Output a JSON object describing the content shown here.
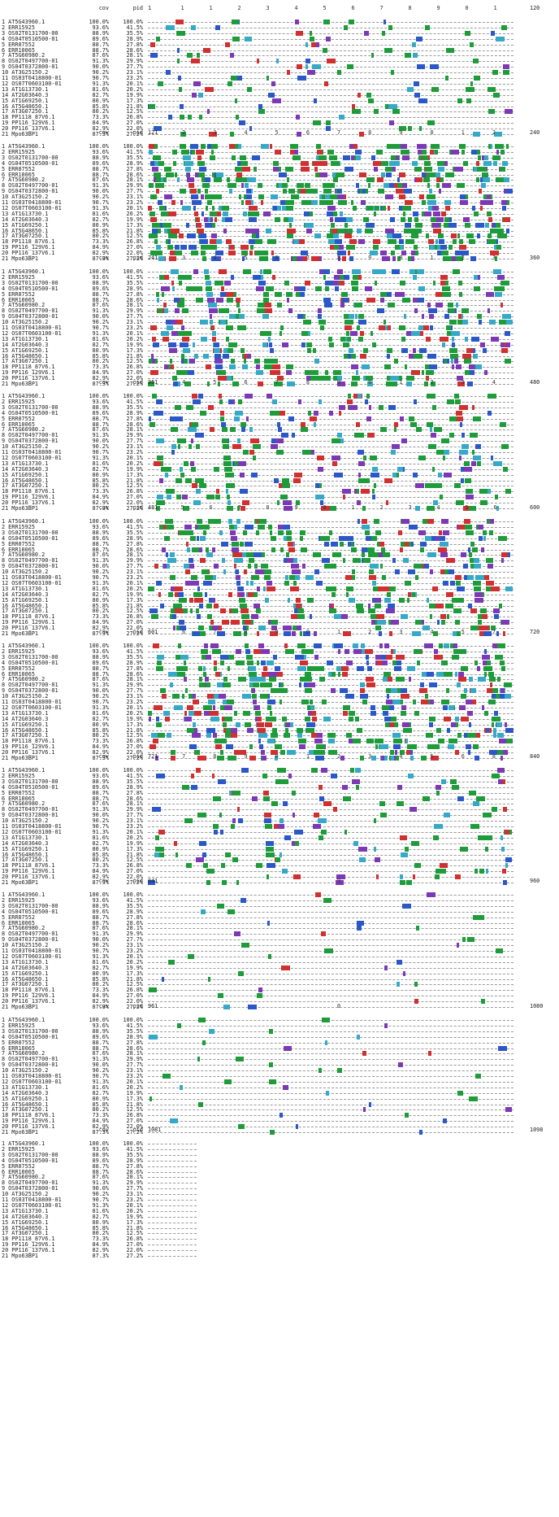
{
  "header": {
    "cov_label": "cov",
    "pid_label": "pid"
  },
  "colors": {
    "green": "#1e9c3a",
    "blue": "#2b58c8",
    "red": "#d03030",
    "purple": "#7d39b5",
    "cyan": "#36a9c9",
    "yellow": "#d8c84a",
    "gap": "#9a9a9a"
  },
  "sequences": [
    {
      "label": "1 AT5G43960.1",
      "cov": "100.0%",
      "pid": "100.0%"
    },
    {
      "label": "2 ERR15925",
      "cov": "93.6%",
      "pid": "41.5%"
    },
    {
      "label": "3 OS02T0131700-00",
      "cov": "88.9%",
      "pid": "35.5%"
    },
    {
      "label": "4 OS04T0510500-01",
      "cov": "89.6%",
      "pid": "28.9%"
    },
    {
      "label": "5 ERR07552",
      "cov": "88.7%",
      "pid": "27.8%"
    },
    {
      "label": "6 ERR10065",
      "cov": "88.7%",
      "pid": "28.6%"
    },
    {
      "label": "7 AT5G60980.2",
      "cov": "87.6%",
      "pid": "28.1%"
    },
    {
      "label": "8 OS02T0497700-01",
      "cov": "91.3%",
      "pid": "29.9%"
    },
    {
      "label": "9 OS04T0372800-01",
      "cov": "90.0%",
      "pid": "27.7%"
    },
    {
      "label": "10 AT3G25150.2",
      "cov": "90.2%",
      "pid": "23.1%"
    },
    {
      "label": "11 OS03T0418800-01",
      "cov": "90.7%",
      "pid": "23.2%"
    },
    {
      "label": "12 OS07T0603100-01",
      "cov": "91.3%",
      "pid": "20.1%"
    },
    {
      "label": "13 AT1G13730.1",
      "cov": "81.6%",
      "pid": "20.2%"
    },
    {
      "label": "14 AT2G03640.3",
      "cov": "82.7%",
      "pid": "19.9%"
    },
    {
      "label": "15 AT1G69250.1",
      "cov": "80.9%",
      "pid": "17.3%"
    },
    {
      "label": "16 AT5G48650.1",
      "cov": "85.8%",
      "pid": "21.8%"
    },
    {
      "label": "17 AT3G07250.1",
      "cov": "80.2%",
      "pid": "12.5%"
    },
    {
      "label": "18 PP1118_87V6.1",
      "cov": "73.3%",
      "pid": "26.8%"
    },
    {
      "label": "19 PP116_129V6.1",
      "cov": "84.9%",
      "pid": "27.0%"
    },
    {
      "label": "20 PP116_137V6.1",
      "cov": "82.9%",
      "pid": "22.0%"
    },
    {
      "label": "21 Mpo63BP1",
      "cov": "87.3%",
      "pid": "27.2%"
    }
  ],
  "blocks": [
    {
      "start": "1",
      "end": "120",
      "ticks": [
        "1",
        "1",
        "2",
        "3",
        "4",
        "5",
        "6",
        "7",
        "8",
        "9",
        "0",
        "1"
      ]
    },
    {
      "start": "121",
      "end": "240",
      "ticks": [
        "2",
        "3",
        "4",
        "5",
        "6",
        "7",
        "8",
        "9",
        "0",
        "1",
        "2"
      ]
    },
    {
      "start": "241",
      "end": "360",
      "ticks": [
        "3",
        "4",
        "5",
        "6",
        "7",
        "8",
        "9",
        "0",
        "1",
        "2",
        "3"
      ]
    },
    {
      "start": "361",
      "end": "480",
      "ticks": [
        "4",
        "5",
        "6",
        "7",
        "8",
        "9",
        "0",
        "1",
        "2",
        "3",
        "4"
      ]
    },
    {
      "start": "481",
      "end": "600",
      "ticks": [
        "5",
        "6",
        "7",
        "8",
        "9",
        "0",
        "1",
        "2",
        "3",
        "4",
        "5",
        "6"
      ]
    },
    {
      "start": "601",
      "end": "720",
      "ticks": [
        "6",
        "7",
        "8",
        "9",
        "0",
        "1",
        "2",
        "3",
        "4",
        "5",
        "7"
      ]
    },
    {
      "start": "721",
      "end": "840",
      "ticks": [
        "7",
        "8",
        "9",
        "0",
        "1",
        "2",
        "3",
        "4",
        "5",
        "6",
        "8"
      ]
    },
    {
      "start": "841",
      "end": "960",
      "ticks": [
        "9"
      ]
    },
    {
      "start": "961",
      "end": "1080",
      "ticks": [
        "0"
      ]
    },
    {
      "start": "1081",
      "end": "1098",
      "ticks": []
    }
  ]
}
